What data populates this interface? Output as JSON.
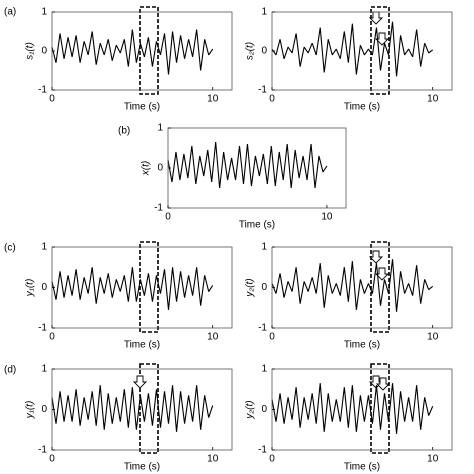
{
  "chart_data": [
    {
      "type": "line",
      "panel_label": "(a)",
      "y_label": "s₁(t)",
      "x_label": "Time (s)",
      "xlim": [
        0,
        11.2
      ],
      "ylim": [
        -1,
        1
      ],
      "xticks": [
        0,
        10
      ],
      "yticks": [
        -1,
        0,
        1
      ],
      "color": "#000000",
      "x": [
        0,
        0.25,
        0.5,
        0.75,
        1,
        1.25,
        1.5,
        1.75,
        2,
        2.25,
        2.5,
        2.75,
        3,
        3.25,
        3.5,
        3.75,
        4,
        4.25,
        4.5,
        4.75,
        5,
        5.25,
        5.5,
        5.75,
        6,
        6.25,
        6.5,
        6.75,
        7,
        7.25,
        7.5,
        7.75,
        8,
        8.25,
        8.5,
        8.75,
        9,
        9.25,
        9.5,
        9.75,
        10
      ],
      "values": [
        0.1,
        -0.3,
        0.45,
        -0.2,
        0.35,
        -0.15,
        0.4,
        -0.3,
        0.25,
        -0.1,
        0.5,
        -0.35,
        0.2,
        -0.1,
        0.3,
        -0.25,
        0.15,
        -0.05,
        0.3,
        -0.4,
        0.55,
        -0.3,
        0.2,
        -0.15,
        0.35,
        -0.4,
        0.25,
        -0.1,
        0.45,
        -0.6,
        0.5,
        -0.3,
        0.4,
        -0.2,
        0.3,
        -0.15,
        0.55,
        -0.5,
        0.3,
        -0.1,
        0.05
      ]
    },
    {
      "type": "line",
      "y_label": "s₂(t)",
      "x_label": "Time (s)",
      "xlim": [
        0,
        11.2
      ],
      "ylim": [
        -1,
        1
      ],
      "xticks": [
        0,
        10
      ],
      "yticks": [
        -1,
        0,
        1
      ],
      "color": "#000000",
      "x": [
        0,
        0.25,
        0.5,
        0.75,
        1,
        1.25,
        1.5,
        1.75,
        2,
        2.25,
        2.5,
        2.75,
        3,
        3.25,
        3.5,
        3.75,
        4,
        4.25,
        4.5,
        4.75,
        5,
        5.25,
        5.5,
        5.75,
        6,
        6.25,
        6.5,
        6.75,
        7,
        7.25,
        7.5,
        7.75,
        8,
        8.25,
        8.5,
        8.75,
        9,
        9.25,
        9.5,
        9.75,
        10
      ],
      "values": [
        0.05,
        -0.1,
        0.3,
        -0.2,
        0.1,
        -0.05,
        0.45,
        -0.4,
        0.1,
        -0.05,
        0.2,
        -0.1,
        0.6,
        -0.55,
        0.3,
        -0.1,
        0.05,
        -0.2,
        0.5,
        -0.3,
        0.7,
        -0.6,
        0.15,
        -0.1,
        0.05,
        -0.1,
        0.6,
        -0.5,
        0.2,
        -0.1,
        0.75,
        -0.65,
        0.4,
        -0.1,
        0.05,
        -0.15,
        0.55,
        -0.4,
        0.2,
        -0.05,
        0.03
      ]
    },
    {
      "type": "line",
      "panel_label": "(b)",
      "y_label": "x(t)",
      "x_label": "Time (s)",
      "xlim": [
        0,
        11.2
      ],
      "ylim": [
        -1,
        1
      ],
      "xticks": [
        0,
        10
      ],
      "yticks": [
        -1,
        0,
        1
      ],
      "color": "#000000",
      "x": [
        0,
        0.25,
        0.5,
        0.75,
        1,
        1.25,
        1.5,
        1.75,
        2,
        2.25,
        2.5,
        2.75,
        3,
        3.25,
        3.5,
        3.75,
        4,
        4.25,
        4.5,
        4.75,
        5,
        5.25,
        5.5,
        5.75,
        6,
        6.25,
        6.5,
        6.75,
        7,
        7.25,
        7.5,
        7.75,
        8,
        8.25,
        8.5,
        8.75,
        9,
        9.25,
        9.5,
        9.75,
        10
      ],
      "values": [
        0.2,
        -0.35,
        0.4,
        -0.3,
        0.35,
        -0.25,
        0.55,
        -0.4,
        0.3,
        -0.2,
        0.45,
        -0.35,
        0.65,
        -0.5,
        0.4,
        -0.3,
        0.25,
        -0.3,
        0.55,
        -0.4,
        0.6,
        -0.45,
        0.3,
        -0.2,
        0.35,
        -0.4,
        0.55,
        -0.45,
        0.4,
        -0.3,
        0.6,
        -0.5,
        0.45,
        -0.25,
        0.3,
        -0.3,
        0.6,
        -0.5,
        0.3,
        -0.1,
        0.05
      ]
    },
    {
      "type": "line",
      "panel_label": "(c)",
      "y_label": "y₁(t)",
      "x_label": "Time (s)",
      "xlim": [
        0,
        11.2
      ],
      "ylim": [
        -1,
        1
      ],
      "xticks": [
        0,
        10
      ],
      "yticks": [
        -1,
        0,
        1
      ],
      "color": "#000000",
      "x": [
        0,
        0.25,
        0.5,
        0.75,
        1,
        1.25,
        1.5,
        1.75,
        2,
        2.25,
        2.5,
        2.75,
        3,
        3.25,
        3.5,
        3.75,
        4,
        4.25,
        4.5,
        4.75,
        5,
        5.25,
        5.5,
        5.75,
        6,
        6.25,
        6.5,
        6.75,
        7,
        7.25,
        7.5,
        7.75,
        8,
        8.25,
        8.5,
        8.75,
        9,
        9.25,
        9.5,
        9.75,
        10
      ],
      "values": [
        0.15,
        -0.3,
        0.4,
        -0.25,
        0.3,
        -0.2,
        0.45,
        -0.3,
        0.25,
        -0.15,
        0.5,
        -0.4,
        0.25,
        -0.15,
        0.35,
        -0.25,
        0.2,
        -0.1,
        0.3,
        -0.35,
        0.5,
        -0.35,
        0.2,
        -0.2,
        0.35,
        -0.35,
        0.3,
        -0.15,
        0.45,
        -0.55,
        0.5,
        -0.35,
        0.4,
        -0.25,
        0.3,
        -0.2,
        0.5,
        -0.45,
        0.3,
        -0.1,
        0.05
      ]
    },
    {
      "type": "line",
      "y_label": "y₂(t)",
      "x_label": "Time (s)",
      "xlim": [
        0,
        11.2
      ],
      "ylim": [
        -1,
        1
      ],
      "xticks": [
        0,
        10
      ],
      "yticks": [
        -1,
        0,
        1
      ],
      "color": "#000000",
      "x": [
        0,
        0.25,
        0.5,
        0.75,
        1,
        1.25,
        1.5,
        1.75,
        2,
        2.25,
        2.5,
        2.75,
        3,
        3.25,
        3.5,
        3.75,
        4,
        4.25,
        4.5,
        4.75,
        5,
        5.25,
        5.5,
        5.75,
        6,
        6.25,
        6.5,
        6.75,
        7,
        7.25,
        7.5,
        7.75,
        8,
        8.25,
        8.5,
        8.75,
        9,
        9.25,
        9.5,
        9.75,
        10
      ],
      "values": [
        0.1,
        -0.15,
        0.35,
        -0.25,
        0.15,
        -0.1,
        0.5,
        -0.4,
        0.15,
        -0.1,
        0.25,
        -0.15,
        0.6,
        -0.5,
        0.3,
        -0.15,
        0.1,
        -0.2,
        0.5,
        -0.35,
        0.65,
        -0.55,
        0.2,
        -0.15,
        0.1,
        -0.15,
        0.6,
        -0.45,
        0.2,
        -0.15,
        0.7,
        -0.6,
        0.4,
        -0.15,
        0.1,
        -0.2,
        0.55,
        -0.4,
        0.2,
        -0.05,
        0.03
      ]
    },
    {
      "type": "line",
      "panel_label": "(d)",
      "y_label": "y₁(t)",
      "x_label": "Time (s)",
      "xlim": [
        0,
        11.2
      ],
      "ylim": [
        -1,
        1
      ],
      "xticks": [
        0,
        10
      ],
      "yticks": [
        -1,
        0,
        1
      ],
      "color": "#000000",
      "x": [
        0,
        0.25,
        0.5,
        0.75,
        1,
        1.25,
        1.5,
        1.75,
        2,
        2.25,
        2.5,
        2.75,
        3,
        3.25,
        3.5,
        3.75,
        4,
        4.25,
        4.5,
        4.75,
        5,
        5.25,
        5.5,
        5.75,
        6,
        6.25,
        6.5,
        6.75,
        7,
        7.25,
        7.5,
        7.75,
        8,
        8.25,
        8.5,
        8.75,
        9,
        9.25,
        9.5,
        9.75,
        10
      ],
      "values": [
        0.3,
        -0.35,
        0.45,
        -0.3,
        0.35,
        -0.3,
        0.5,
        -0.4,
        0.3,
        -0.25,
        0.45,
        -0.4,
        0.6,
        -0.5,
        0.4,
        -0.35,
        0.3,
        -0.3,
        0.5,
        -0.45,
        0.55,
        -0.5,
        0.35,
        -0.3,
        0.4,
        -0.4,
        0.5,
        -0.45,
        0.45,
        -0.35,
        0.6,
        -0.55,
        0.45,
        -0.35,
        0.35,
        -0.3,
        0.6,
        -0.5,
        0.35,
        -0.2,
        0.1
      ]
    },
    {
      "type": "line",
      "y_label": "y₂(t)",
      "x_label": "Time (s)",
      "xlim": [
        0,
        11.2
      ],
      "ylim": [
        -1,
        1
      ],
      "xticks": [
        0,
        10
      ],
      "yticks": [
        -1,
        0,
        1
      ],
      "color": "#000000",
      "x": [
        0,
        0.25,
        0.5,
        0.75,
        1,
        1.25,
        1.5,
        1.75,
        2,
        2.25,
        2.5,
        2.75,
        3,
        3.25,
        3.5,
        3.75,
        4,
        4.25,
        4.5,
        4.75,
        5,
        5.25,
        5.5,
        5.75,
        6,
        6.25,
        6.5,
        6.75,
        7,
        7.25,
        7.5,
        7.75,
        8,
        8.25,
        8.5,
        8.75,
        9,
        9.25,
        9.5,
        9.75,
        10
      ],
      "values": [
        0.25,
        -0.3,
        0.4,
        -0.35,
        0.3,
        -0.25,
        0.55,
        -0.45,
        0.3,
        -0.25,
        0.4,
        -0.35,
        0.65,
        -0.55,
        0.4,
        -0.3,
        0.25,
        -0.3,
        0.55,
        -0.45,
        0.6,
        -0.55,
        0.35,
        -0.3,
        0.35,
        -0.35,
        0.6,
        -0.5,
        0.4,
        -0.3,
        0.65,
        -0.6,
        0.45,
        -0.3,
        0.3,
        -0.3,
        0.6,
        -0.5,
        0.3,
        -0.15,
        0.08
      ]
    }
  ]
}
